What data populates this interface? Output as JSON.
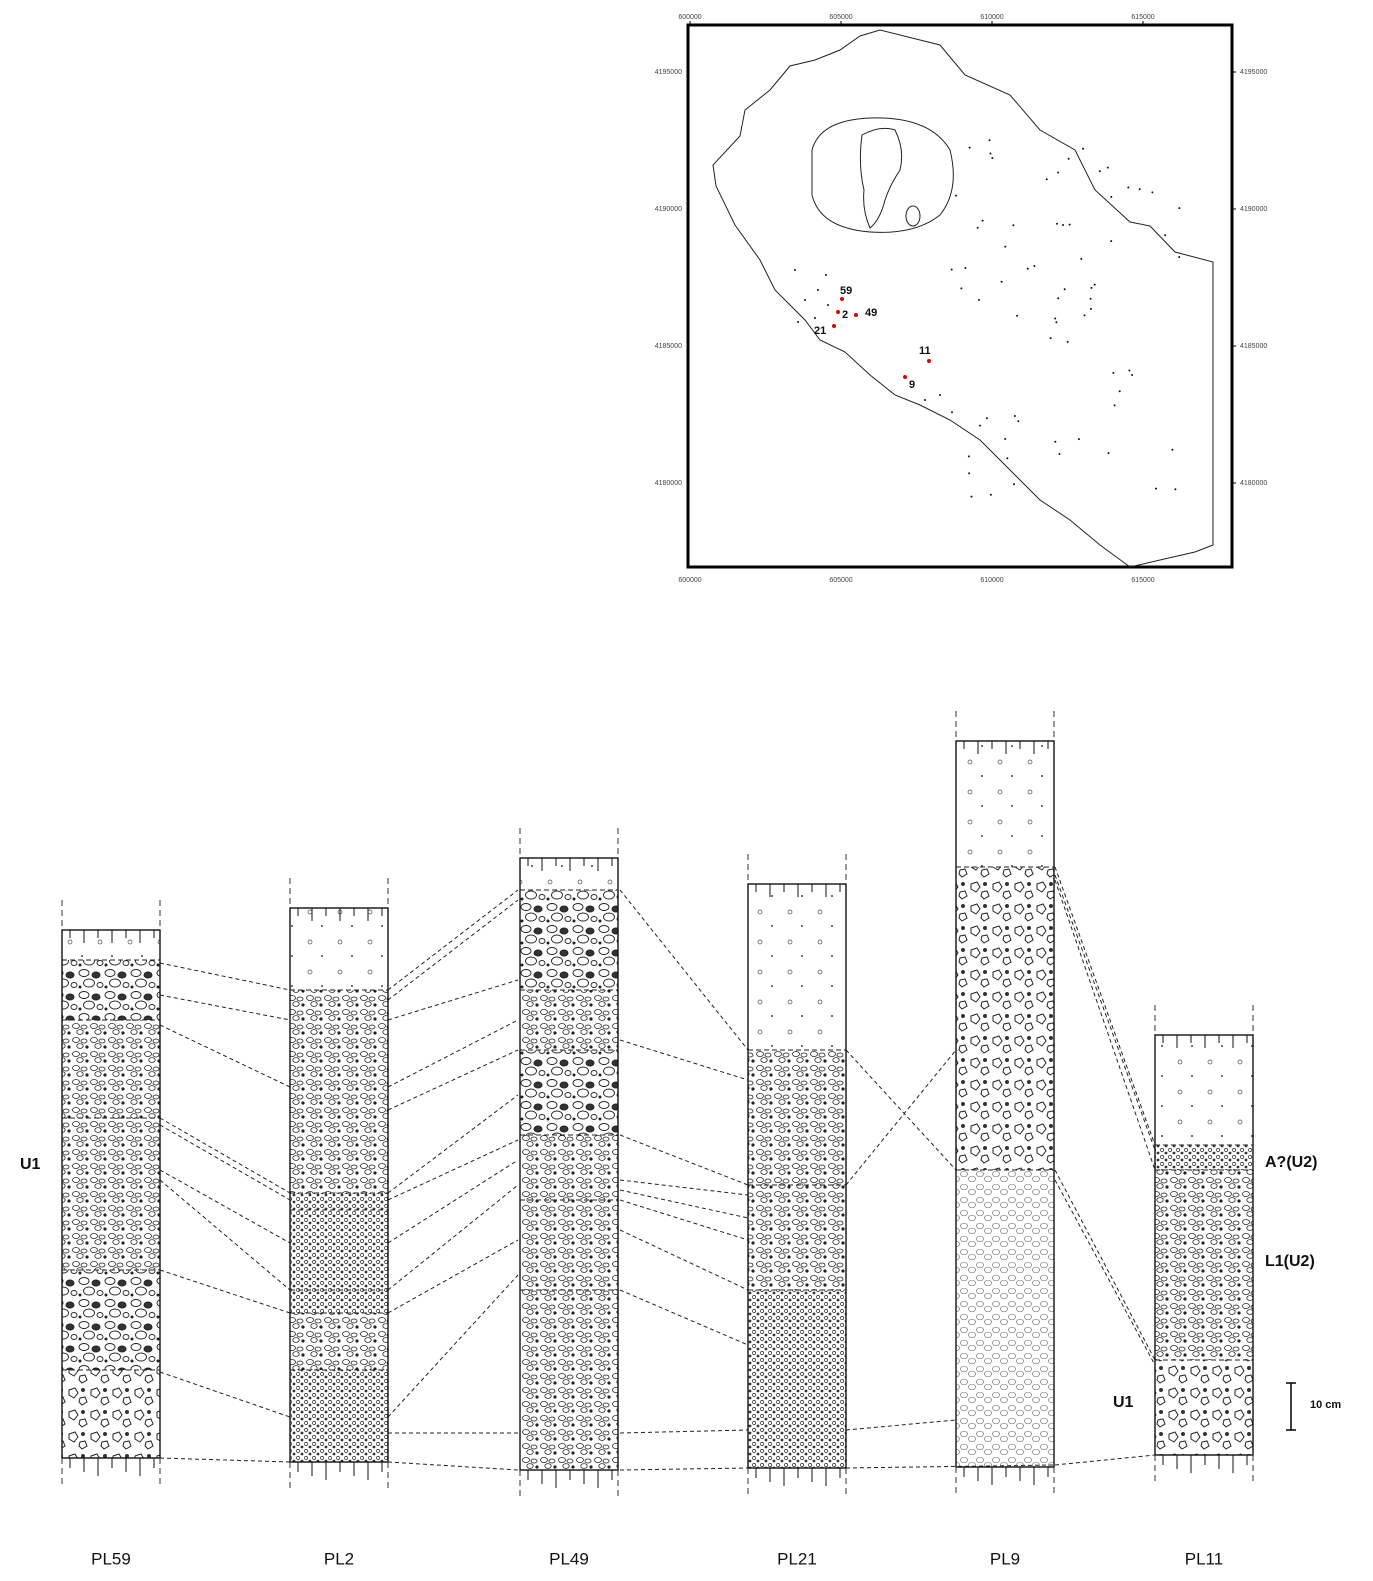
{
  "map": {
    "xticks": [
      600000,
      605000,
      610000,
      615000
    ],
    "yticks": [
      4195000,
      4190000,
      4185000,
      4180000
    ],
    "sample_labels": [
      "59",
      "2",
      "49",
      "21",
      "11",
      "9"
    ]
  },
  "columns": [
    "PL59",
    "PL2",
    "PL49",
    "PL21",
    "PL9",
    "PL11"
  ],
  "unit_labels": {
    "left": "U1",
    "pl11_upper": "A?(U2)",
    "pl11_middle": "L1(U2)",
    "pl11_lower": "U1"
  },
  "scale_bar": "10 cm"
}
